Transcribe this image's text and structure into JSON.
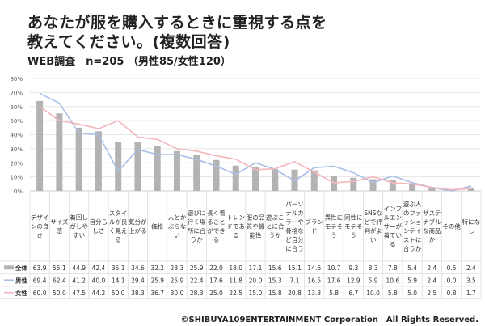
{
  "header": {
    "title_line1": "あなたが服を購入するときに重視する点を",
    "title_line2": "教えてください。(複数回答)",
    "subtitle": "WEB調査　n=205 （男性85/女性120）"
  },
  "footer": {
    "copyright": "©SHIBUYA109ENTERTAINMENT Corporation　All Rights Reserved."
  },
  "chart_data": {
    "type": "bar",
    "ylim": [
      0,
      80
    ],
    "yticks": [
      "0%",
      "10%",
      "20%",
      "30%",
      "40%",
      "50%",
      "60%",
      "70%",
      "80%"
    ],
    "grid": true,
    "legend_placement": "table-left",
    "categories": [
      "デザインの良さ",
      "サイズ感",
      "着回しがしやすい",
      "自分らしさ",
      "スタイルが良く見える",
      "気分が上がる",
      "価格",
      "人とかぶらない",
      "遊びに行く場所に合うか",
      "長く着ることができる",
      "トレンドである",
      "服の品質や機能性",
      "遊ぶことに合うか",
      "パーソナルカラーや骨格など自分に合う",
      "ブランド",
      "異性にモテそう",
      "同性にモテそう",
      "SNSなどで評判がよい",
      "インフルエンサーが着ている",
      "遊ぶ人のファッションテイストに合うか",
      "サステナブルな商品か",
      "その他",
      "特になし"
    ],
    "series": [
      {
        "name": "全体",
        "type": "bar",
        "color": "#b3b3b3",
        "values": [
          63.9,
          55.1,
          44.9,
          42.4,
          35.1,
          34.6,
          32.2,
          28.3,
          25.9,
          22.0,
          18.0,
          17.1,
          15.6,
          15.1,
          14.6,
          10.7,
          9.3,
          8.3,
          7.8,
          5.4,
          2.4,
          0.5,
          2.4
        ]
      },
      {
        "name": "男性",
        "type": "line",
        "color": "#a9bfe6",
        "values": [
          69.4,
          62.4,
          41.2,
          40.0,
          14.1,
          29.4,
          25.9,
          25.9,
          22.4,
          17.6,
          11.8,
          20.0,
          15.3,
          7.1,
          16.5,
          17.6,
          12.9,
          5.9,
          10.6,
          5.9,
          2.4,
          0.0,
          3.5
        ]
      },
      {
        "name": "女性",
        "type": "line",
        "color": "#f5b5bd",
        "values": [
          60.0,
          50.0,
          47.5,
          44.2,
          50.0,
          38.3,
          36.7,
          30.0,
          28.3,
          25.0,
          22.5,
          15.0,
          15.8,
          20.8,
          13.3,
          5.8,
          6.7,
          10.0,
          5.8,
          5.0,
          2.5,
          0.8,
          1.7
        ]
      }
    ]
  }
}
